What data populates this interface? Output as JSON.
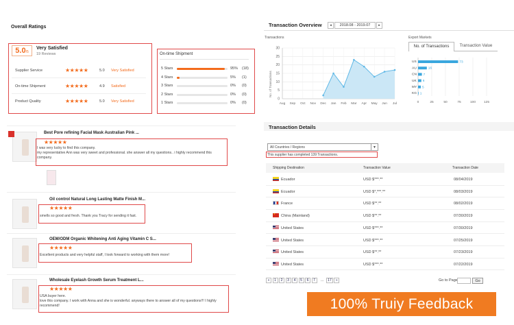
{
  "overall": {
    "title": "Overall Ratings",
    "score": "5.0",
    "score_suffix": "/5",
    "verdict": "Very Satisfied",
    "reviews": "19 Reviews",
    "rows": [
      {
        "label": "Supplier Service",
        "score": "5.0",
        "verdict": "Very Satisfied"
      },
      {
        "label": "On-time Shipment",
        "score": "4.9",
        "verdict": "Satisfied"
      },
      {
        "label": "Product Quality",
        "score": "5.0",
        "verdict": "Very Satisfied"
      }
    ]
  },
  "ontime": {
    "title": "On-time Shipment",
    "rows": [
      {
        "label": "5 Stars",
        "pct": "95%",
        "count": "(18)",
        "fill": 0.95
      },
      {
        "label": "4 Stars",
        "pct": "5%",
        "count": "(1)",
        "fill": 0.05
      },
      {
        "label": "3 Stars",
        "pct": "0%",
        "count": "(0)",
        "fill": 0
      },
      {
        "label": "2 Stars",
        "pct": "0%",
        "count": "(0)",
        "fill": 0
      },
      {
        "label": "1 Stars",
        "pct": "0%",
        "count": "(0)",
        "fill": 0
      }
    ]
  },
  "reviews": [
    {
      "product": "Best Pore refining Facial Mask Australian Pink ...",
      "stars": "★★★★★",
      "text1": "I was very lucky to find this company.",
      "text2": "my representative Ann was very sweet and professional. she answer all my questions.. i highly recommend this company."
    },
    {
      "product": "Oil control Natural Long Lasting Matte Finish M...",
      "stars": "★★★★★",
      "text1": "smells so good and fresh. Thank you Tracy for sending it fast.",
      "text2": ""
    },
    {
      "product": "OEM/ODM Organic Whitening Anti Aging Vitamin C S...",
      "stars": "★★★★★",
      "text1": "Excellent products and very helpful staff, I look forward to working with them more!",
      "text2": ""
    },
    {
      "product": "Wholesale Eyelash Growth Serum Treatment L...",
      "stars": "★★★★★",
      "text1": "USA buyer here.",
      "text2": "love this company. I work with Anna and she is wonderful. anyways there to answer all of my questions!!! I highly recommend!"
    }
  ],
  "overview": {
    "title": "Transaction Overview",
    "period": "2018.08 - 2019.07",
    "transactions_label": "Transactions",
    "export_label": "Export Markets",
    "tab_no": "No. of Transactions",
    "tab_value": "Transaction Value"
  },
  "chart_data": [
    {
      "type": "area",
      "title": "Transactions",
      "ylabel": "No. of Transactions",
      "categories": [
        "Aug",
        "Sep",
        "Oct",
        "Nov",
        "Dec",
        "Jan",
        "Feb",
        "Mar",
        "Apr",
        "May",
        "Jun",
        "Jul"
      ],
      "values": [
        null,
        null,
        null,
        null,
        2,
        15,
        7,
        23,
        19,
        13,
        16,
        17
      ],
      "ylim": [
        0,
        30
      ],
      "yticks": [
        0,
        5,
        10,
        15,
        20,
        25,
        30
      ],
      "color": "#5fb8e6"
    },
    {
      "type": "bar",
      "title": "Export Markets",
      "categories": [
        "US",
        "AU",
        "CN",
        "UK",
        "MY",
        "KG"
      ],
      "values": [
        73,
        16,
        7,
        6,
        5,
        1
      ],
      "xlim": [
        0,
        125
      ],
      "xticks": [
        0,
        25,
        50,
        75,
        100,
        125
      ],
      "color": "#3aa7de"
    }
  ],
  "details": {
    "title": "Transaction Details",
    "region_select": "All Countries / Regions",
    "completed": "This supplier has completed 139 Transactions.",
    "headers": [
      "Shipping Destination",
      "Transaction Value",
      "Transaction Date"
    ],
    "rows": [
      {
        "country": "Ecuador",
        "value": "USD $***.**",
        "date": "08/04/2019",
        "flag": "ec"
      },
      {
        "country": "Ecuador",
        "value": "USD $*,***.**",
        "date": "08/03/2019",
        "flag": "ec"
      },
      {
        "country": "France",
        "value": "USD $**.**",
        "date": "08/02/2019",
        "flag": "fr"
      },
      {
        "country": "China (Mainland)",
        "value": "USD $**.**",
        "date": "07/30/2019",
        "flag": "cn"
      },
      {
        "country": "United States",
        "value": "USD $***.**",
        "date": "07/30/2019",
        "flag": "us"
      },
      {
        "country": "United States",
        "value": "USD $***.**",
        "date": "07/25/2019",
        "flag": "us"
      },
      {
        "country": "United States",
        "value": "USD $**.**",
        "date": "07/23/2019",
        "flag": "us"
      },
      {
        "country": "United States",
        "value": "USD $***.**",
        "date": "07/22/2019",
        "flag": "us"
      }
    ],
    "pages": [
      "1",
      "2",
      "3",
      "4",
      "5",
      "6",
      "7",
      "...",
      "17"
    ],
    "goto_label": "Go to Page",
    "go_button": "Go"
  },
  "banner": "100% Truiy Feedback",
  "colors": {
    "accent": "#f36b1c",
    "highlight_box": "#e04848",
    "chart_blue": "#3aa7de",
    "banner": "#f07b21"
  }
}
